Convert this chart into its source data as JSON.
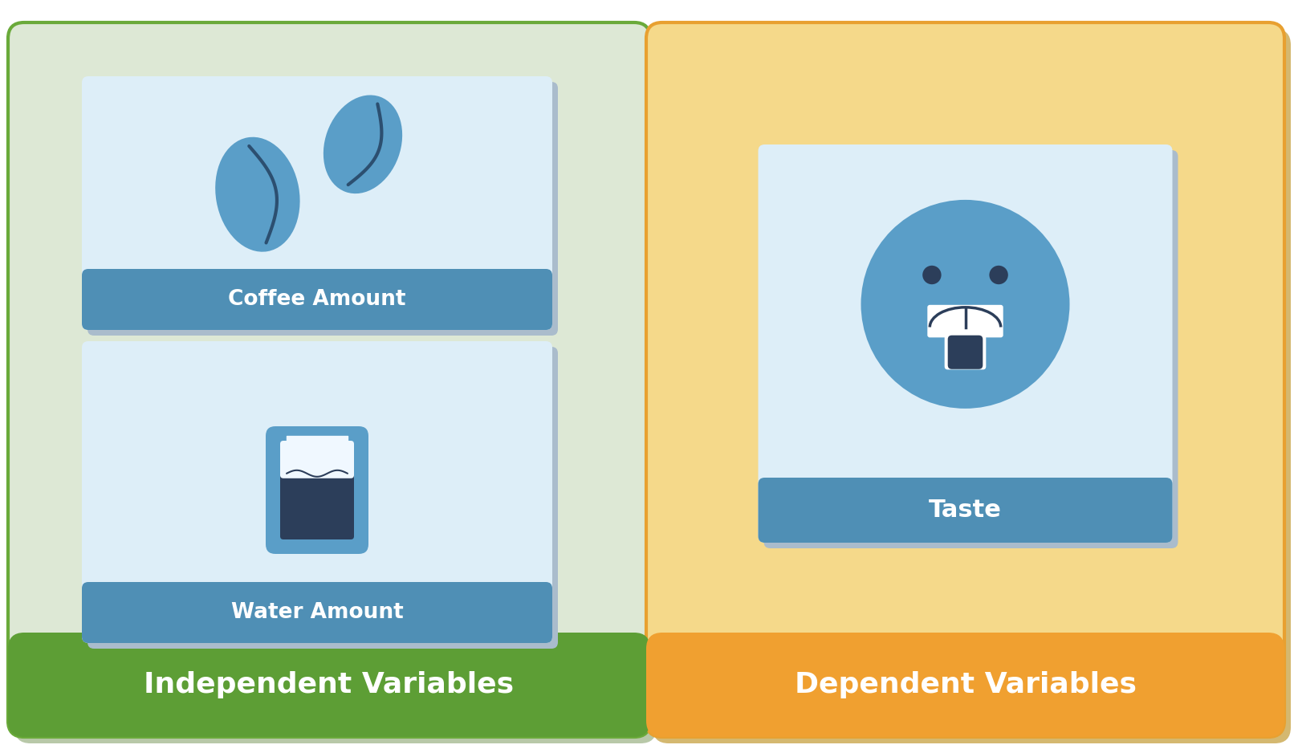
{
  "fig_width": 16.12,
  "fig_height": 9.38,
  "bg_color": "#ffffff",
  "left_panel_bg": "#dde8d5",
  "left_panel_border": "#6aaa3a",
  "left_label_bg": "#5d9e35",
  "left_label_text": "Independent Variables",
  "right_panel_bg": "#f5d98a",
  "right_panel_border": "#e8a030",
  "right_label_bg": "#f0a030",
  "right_label_text": "Dependent Variables",
  "card_bg": "#ddeef8",
  "card_border": "#5b9ec9",
  "card_label_bg": "#4f8fb5",
  "card_label_text_color": "#ffffff",
  "coffee_label": "Coffee Amount",
  "water_label": "Water Amount",
  "taste_label": "Taste",
  "bean_outer": "#5a9ec8",
  "bean_inner": "#2c4f70",
  "glass_outer": "#5a9ec8",
  "glass_inner": "#2c3e5a",
  "glass_white": "#f0f8ff",
  "face_blue": "#5a9ec8",
  "face_dark": "#2c3e5a",
  "face_white": "#ffffff"
}
